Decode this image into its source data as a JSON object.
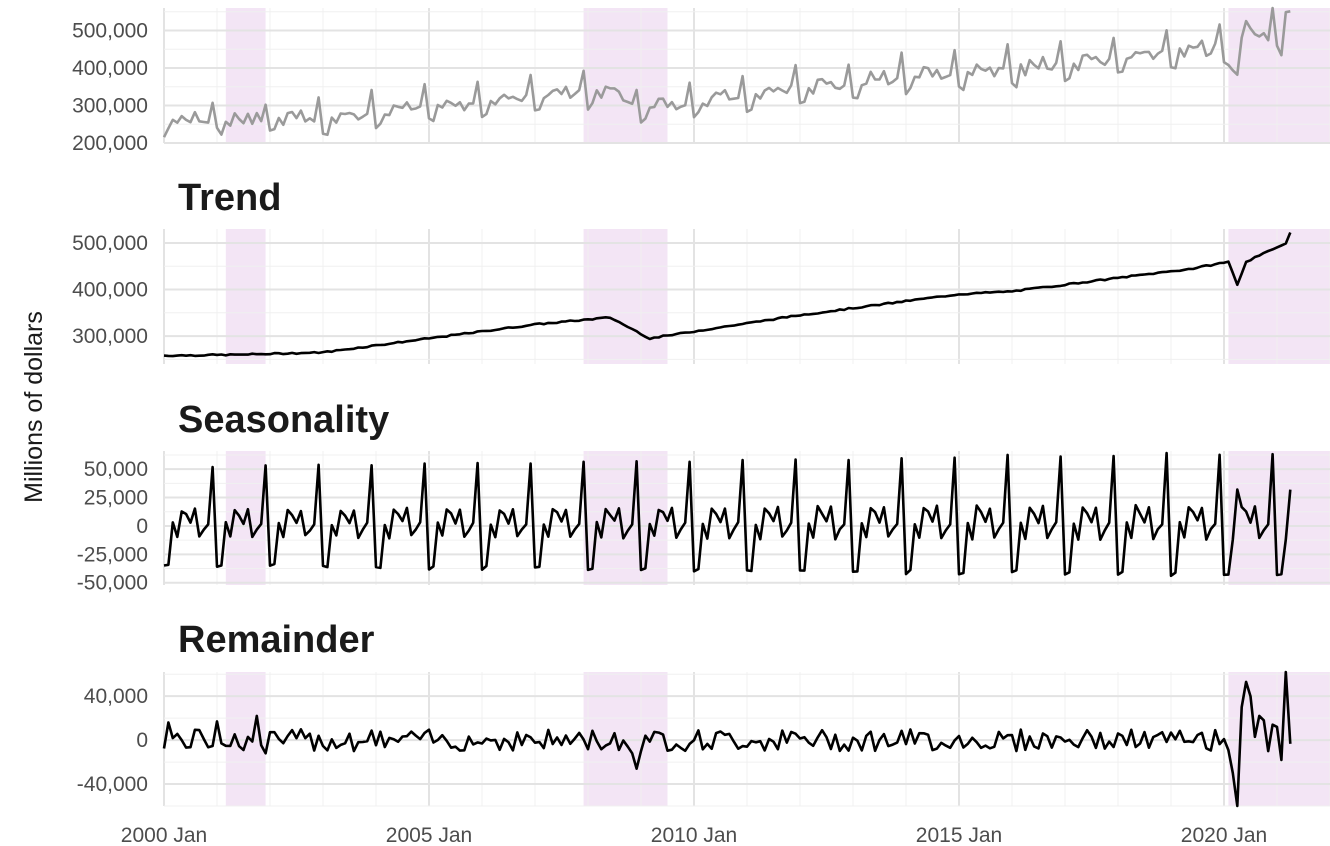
{
  "chart_data": {
    "type": "line",
    "ylabel": "Millions of dollars",
    "x_range": [
      "2000-01",
      "2021-12"
    ],
    "x_ticks": [
      "2000 Jan",
      "2005 Jan",
      "2010 Jan",
      "2015 Jan",
      "2020 Jan"
    ],
    "series_colors": {
      "data": "#9a9a9a",
      "trend": "#000000",
      "seasonality": "#000000",
      "remainder": "#000000"
    },
    "recession_color": "#f3e5f5",
    "recessions": [
      {
        "start": "2001-03",
        "end": "2001-11"
      },
      {
        "start": "2007-12",
        "end": "2009-06"
      },
      {
        "start": "2020-02",
        "end": "2021-12"
      }
    ],
    "panels": [
      {
        "title": "",
        "series": "data",
        "ylim": [
          200000,
          560000
        ],
        "yticks": [
          {
            "value": 200000,
            "label": "200,000"
          },
          {
            "value": 300000,
            "label": "300,000"
          },
          {
            "value": 400000,
            "label": "400,000"
          },
          {
            "value": 500000,
            "label": "500,000"
          }
        ]
      },
      {
        "title": "Trend",
        "series": "trend",
        "ylim": [
          240000,
          530000
        ],
        "yticks": [
          {
            "value": 300000,
            "label": "300,000"
          },
          {
            "value": 400000,
            "label": "400,000"
          },
          {
            "value": 500000,
            "label": "500,000"
          }
        ]
      },
      {
        "title": "Seasonality",
        "series": "seasonality",
        "ylim": [
          -52000,
          66000
        ],
        "yticks": [
          {
            "value": -50000,
            "label": "-50,000"
          },
          {
            "value": -25000,
            "label": "-25,000"
          },
          {
            "value": 0,
            "label": "0"
          },
          {
            "value": 25000,
            "label": "25,000"
          },
          {
            "value": 50000,
            "label": "50,000"
          }
        ]
      },
      {
        "title": "Remainder",
        "series": "remainder",
        "ylim": [
          -60000,
          62000
        ],
        "yticks": [
          {
            "value": -40000,
            "label": "-40,000"
          },
          {
            "value": 0,
            "label": "0"
          },
          {
            "value": 40000,
            "label": "40,000"
          }
        ]
      }
    ],
    "data_points": {
      "start": "2000-01",
      "seasonal_pattern_2000": [
        -35000,
        -34000,
        2000,
        -9000,
        14000,
        10000,
        3000,
        14000,
        -9000,
        -3000,
        2000,
        52000
      ],
      "trend_anchors": [
        {
          "date": "2000-01",
          "value": 258000
        },
        {
          "date": "2001-06",
          "value": 260000
        },
        {
          "date": "2003-01",
          "value": 265000
        },
        {
          "date": "2005-01",
          "value": 295000
        },
        {
          "date": "2007-01",
          "value": 325000
        },
        {
          "date": "2008-06",
          "value": 340000
        },
        {
          "date": "2009-03",
          "value": 295000
        },
        {
          "date": "2010-01",
          "value": 310000
        },
        {
          "date": "2012-01",
          "value": 345000
        },
        {
          "date": "2014-01",
          "value": 375000
        },
        {
          "date": "2015-01",
          "value": 390000
        },
        {
          "date": "2016-01",
          "value": 396000
        },
        {
          "date": "2018-01",
          "value": 425000
        },
        {
          "date": "2019-06",
          "value": 445000
        },
        {
          "date": "2020-02",
          "value": 460000
        },
        {
          "date": "2020-04",
          "value": 410000
        },
        {
          "date": "2020-06",
          "value": 460000
        },
        {
          "date": "2021-01",
          "value": 490000
        },
        {
          "date": "2021-03",
          "value": 500000
        },
        {
          "date": "2021-04",
          "value": 523000
        }
      ],
      "remainder_events": [
        {
          "date": "2000-02",
          "value": 16000
        },
        {
          "date": "2001-01",
          "value": 17000
        },
        {
          "date": "2001-10",
          "value": 22000
        },
        {
          "date": "2001-12",
          "value": -12000
        },
        {
          "date": "2008-10",
          "value": -6000
        },
        {
          "date": "2008-11",
          "value": -12000
        },
        {
          "date": "2008-12",
          "value": -26000
        },
        {
          "date": "2009-01",
          "value": -10000
        },
        {
          "date": "2009-02",
          "value": 4000
        },
        {
          "date": "2020-03",
          "value": -30000
        },
        {
          "date": "2020-04",
          "value": -60000
        },
        {
          "date": "2020-05",
          "value": 30000
        },
        {
          "date": "2020-06",
          "value": 53000
        },
        {
          "date": "2020-07",
          "value": 40000
        },
        {
          "date": "2020-08",
          "value": 3000
        },
        {
          "date": "2020-09",
          "value": 22000
        },
        {
          "date": "2020-10",
          "value": 18000
        },
        {
          "date": "2020-11",
          "value": -10000
        },
        {
          "date": "2020-12",
          "value": 14000
        },
        {
          "date": "2021-01",
          "value": 12000
        },
        {
          "date": "2021-02",
          "value": -18000
        },
        {
          "date": "2021-03",
          "value": 62000
        }
      ]
    }
  }
}
